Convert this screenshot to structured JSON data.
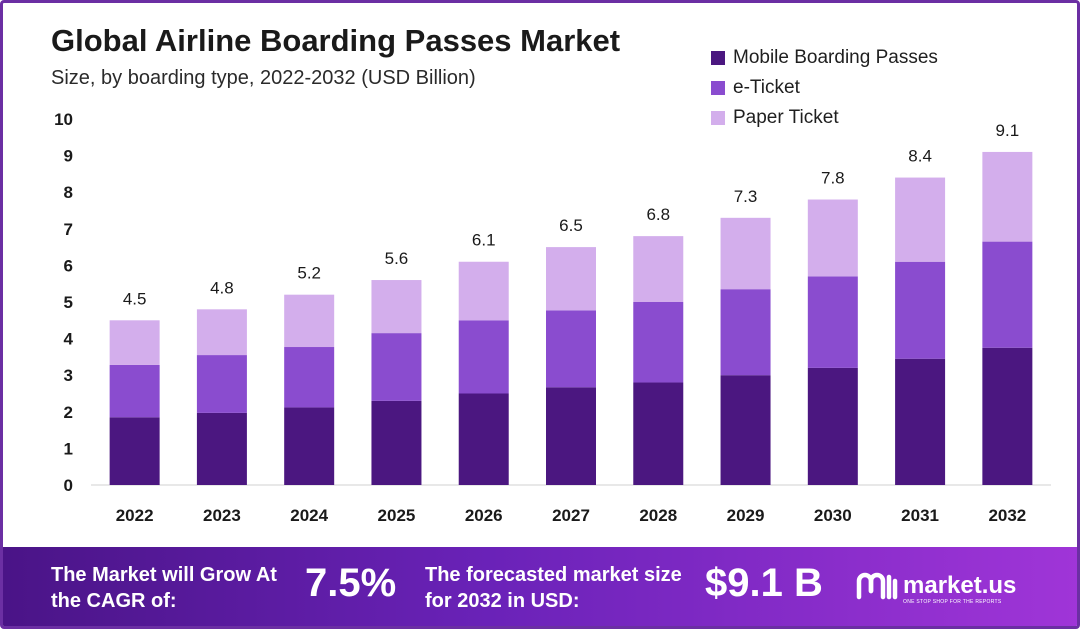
{
  "header": {
    "title": "Global Airline Boarding Passes Market",
    "subtitle": "Size, by boarding type, 2022-2032 (USD Billion)"
  },
  "colors": {
    "mobile": "#4b1780",
    "eticket": "#8a4ccf",
    "paper": "#d3aeec",
    "frame": "#6b2fa3"
  },
  "chart_data": {
    "type": "bar",
    "stacked": true,
    "title": "Global Airline Boarding Passes Market",
    "subtitle": "Size, by boarding type, 2022-2032 (USD Billion)",
    "categories": [
      "2022",
      "2023",
      "2024",
      "2025",
      "2026",
      "2027",
      "2028",
      "2029",
      "2030",
      "2031",
      "2032"
    ],
    "series": [
      {
        "name": "Mobile Boarding Passes",
        "values": [
          1.85,
          1.97,
          2.12,
          2.3,
          2.5,
          2.67,
          2.8,
          3.0,
          3.2,
          3.45,
          3.75
        ]
      },
      {
        "name": "e-Ticket",
        "values": [
          1.43,
          1.58,
          1.65,
          1.85,
          2.0,
          2.1,
          2.2,
          2.35,
          2.5,
          2.65,
          2.9
        ]
      },
      {
        "name": "Paper Ticket",
        "values": [
          1.22,
          1.25,
          1.43,
          1.45,
          1.6,
          1.73,
          1.8,
          1.95,
          2.1,
          2.3,
          2.45
        ]
      }
    ],
    "totals": [
      "4.5",
      "4.8",
      "5.2",
      "5.6",
      "6.1",
      "6.5",
      "6.8",
      "7.3",
      "7.8",
      "8.4",
      "9.1"
    ],
    "yticks": [
      "0",
      "1",
      "2",
      "3",
      "4",
      "5",
      "6",
      "7",
      "8",
      "9",
      "10"
    ],
    "ylim": [
      0,
      10
    ],
    "grid": false,
    "legend_position": "top-right"
  },
  "legend": [
    {
      "label": "Mobile Boarding Passes",
      "color": "#4b1780"
    },
    {
      "label": "e-Ticket",
      "color": "#8a4ccf"
    },
    {
      "label": "Paper Ticket",
      "color": "#d3aeec"
    }
  ],
  "footer": {
    "cagr_text": "The Market will Grow At the CAGR of:",
    "cagr_value": "7.5%",
    "forecast_text": "The forecasted market size for 2032 in USD:",
    "forecast_value": "$9.1 B",
    "brand_name": "market.us",
    "brand_tagline": "ONE STOP SHOP FOR THE REPORTS"
  }
}
